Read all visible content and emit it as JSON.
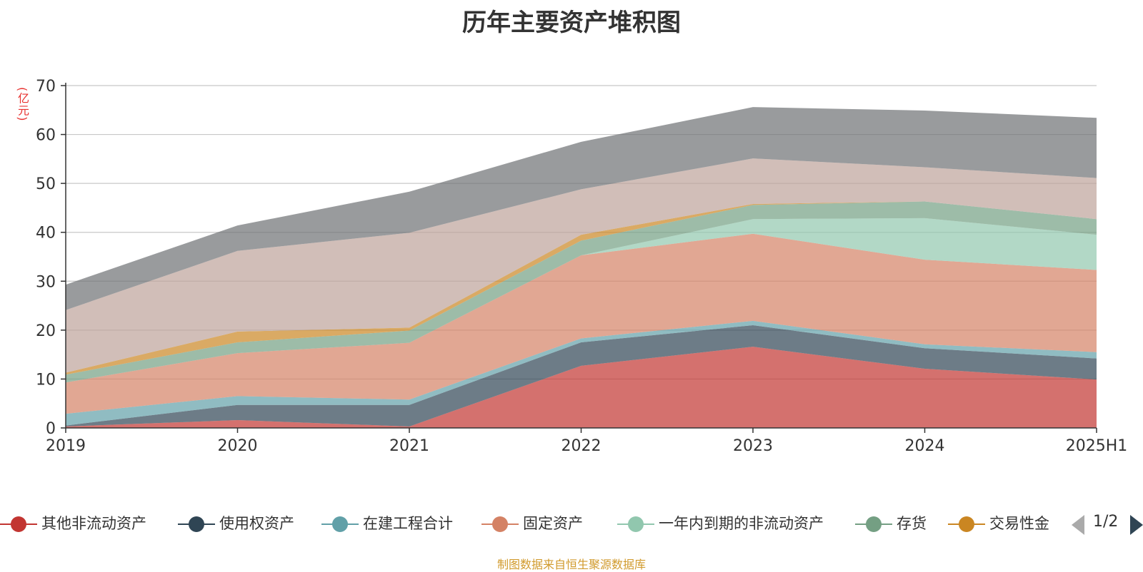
{
  "title": "历年主要资产堆积图",
  "unit_label": "(亿元)",
  "footer": "制图数据来自恒生聚源数据库",
  "pager": {
    "text": "1/2",
    "prev_icon": "triangle-left-icon",
    "next_icon": "triangle-right-icon"
  },
  "legend": [
    {
      "name": "其他非流动资产",
      "color": "#c23531"
    },
    {
      "name": "使用权资产",
      "color": "#2f4554"
    },
    {
      "name": "在建工程合计",
      "color": "#61a0a8"
    },
    {
      "name": "固定资产",
      "color": "#d48265"
    },
    {
      "name": "一年内到期的非流动资产",
      "color": "#91c7ae"
    },
    {
      "name": "存货",
      "color": "#749f83"
    },
    {
      "name": "交易性金",
      "color": "#ca8622"
    }
  ],
  "chart_data": {
    "type": "area",
    "stacked": true,
    "title": "历年主要资产堆积图",
    "ylabel": "(亿元)",
    "categories": [
      "2019",
      "2020",
      "2021",
      "2022",
      "2023",
      "2024",
      "2025H1"
    ],
    "y_ticks": [
      "0",
      "10",
      "20",
      "30",
      "40",
      "50",
      "60",
      "70"
    ],
    "ylim": [
      0,
      70
    ],
    "grid": true,
    "series": [
      {
        "name": "其他非流动资产",
        "color": "#c23531",
        "values": [
          0.3,
          1.6,
          0.3,
          12.7,
          16.6,
          12.1,
          9.9
        ]
      },
      {
        "name": "使用权资产",
        "color": "#2f4554",
        "values": [
          0.2,
          3.1,
          4.4,
          4.8,
          4.4,
          4.2,
          4.3
        ]
      },
      {
        "name": "在建工程合计",
        "color": "#61a0a8",
        "values": [
          2.4,
          1.8,
          1.1,
          0.8,
          0.9,
          0.8,
          1.3
        ]
      },
      {
        "name": "固定资产",
        "color": "#d48265",
        "values": [
          6.4,
          8.8,
          11.6,
          17.0,
          17.8,
          17.3,
          16.8
        ]
      },
      {
        "name": "一年内到期的非流动资产",
        "color": "#91c7ae",
        "values": [
          0.0,
          0.0,
          0.0,
          0.0,
          3.0,
          8.5,
          7.2
        ]
      },
      {
        "name": "存货",
        "color": "#749f83",
        "values": [
          1.6,
          2.2,
          2.5,
          3.0,
          2.9,
          3.4,
          3.2
        ]
      },
      {
        "name": "交易性金融资产",
        "color": "#ca8622",
        "values": [
          0.4,
          2.2,
          0.6,
          1.2,
          0.2,
          0.0,
          0.0
        ]
      },
      {
        "name": "",
        "color": "#bda29a",
        "values": [
          12.8,
          16.5,
          19.4,
          9.3,
          9.3,
          7.0,
          8.4
        ]
      },
      {
        "name": "",
        "color": "#6e7074",
        "values": [
          5.2,
          5.2,
          8.4,
          9.7,
          10.5,
          11.6,
          12.3
        ]
      }
    ]
  }
}
